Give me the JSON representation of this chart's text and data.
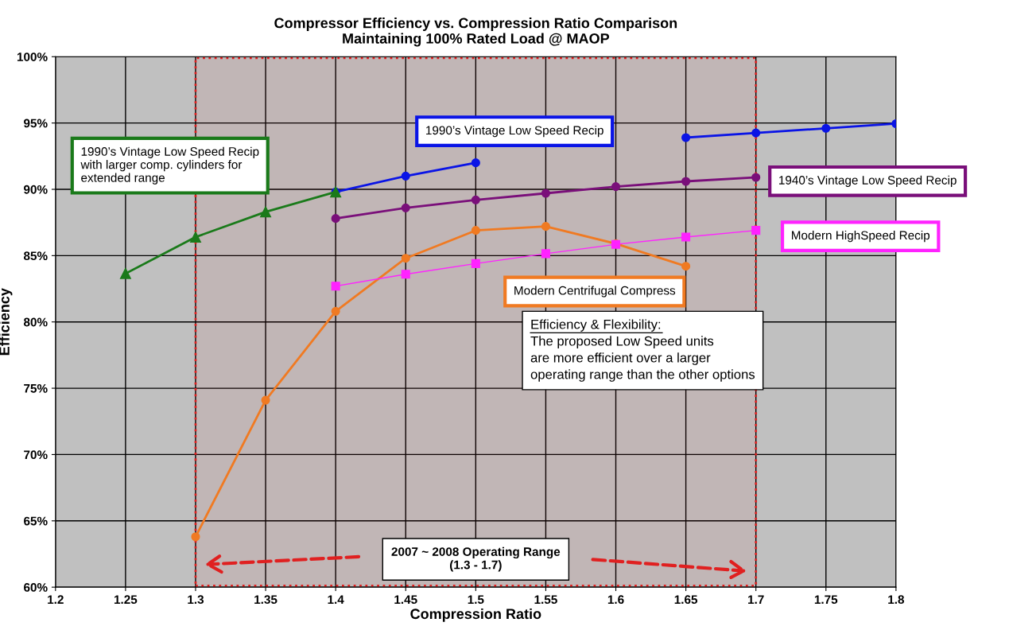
{
  "chart_data": {
    "type": "line",
    "title": "Compressor Efficiency vs. Compression Ratio Comparison\nMaintaining 100% Rated Load @ MAOP",
    "xlabel": "Compression Ratio",
    "ylabel": "Efficiency",
    "x": [
      1.25,
      1.3,
      1.35,
      1.4,
      1.45,
      1.5,
      1.55,
      1.6,
      1.65,
      1.7,
      1.75,
      1.8
    ],
    "series": [
      {
        "name": "1990’s Vintage Low Speed Recip\nwith larger comp. cylinders for\nextended range",
        "color": "#1a7a1a",
        "marker": "triangle",
        "values": [
          83.65,
          86.4,
          88.3,
          89.8,
          null,
          null,
          null,
          null,
          null,
          null,
          null,
          null
        ]
      },
      {
        "name": "1990’s Vintage Low Speed Recip",
        "color": "#0a14e6",
        "marker": "circle",
        "values": [
          null,
          null,
          null,
          89.8,
          91.0,
          92.0,
          null,
          null,
          93.9,
          94.25,
          94.6,
          94.95
        ]
      },
      {
        "name": "1940’s Vintage Low Speed Recip",
        "color": "#7a0f7a",
        "marker": "circle",
        "values": [
          null,
          null,
          null,
          87.8,
          88.6,
          89.2,
          89.7,
          90.2,
          90.6,
          90.9,
          null,
          null
        ]
      },
      {
        "name": "Modern HighSpeed Recip",
        "color": "#ff22ff",
        "marker": "square",
        "values": [
          null,
          null,
          null,
          82.7,
          83.6,
          84.4,
          85.15,
          85.85,
          86.4,
          86.9,
          null,
          null
        ]
      },
      {
        "name": "Modern Centrifugal Compress",
        "color": "#f07a22",
        "marker": "circle",
        "values": [
          null,
          63.8,
          74.1,
          80.8,
          84.8,
          86.9,
          87.2,
          85.9,
          84.2,
          null,
          null,
          null
        ]
      }
    ],
    "xlim": [
      1.2,
      1.8
    ],
    "xticks": [
      1.2,
      1.25,
      1.3,
      1.35,
      1.4,
      1.45,
      1.5,
      1.55,
      1.6,
      1.65,
      1.7,
      1.75,
      1.8
    ],
    "ylim": [
      60,
      100
    ],
    "yticks": [
      {
        "value": 60,
        "label": "60%"
      },
      {
        "value": 65,
        "label": "65%"
      },
      {
        "value": 70,
        "label": "70%"
      },
      {
        "value": 75,
        "label": "75%"
      },
      {
        "value": 80,
        "label": "80%"
      },
      {
        "value": 85,
        "label": "85%"
      },
      {
        "value": 90,
        "label": "90%"
      },
      {
        "value": 95,
        "label": "95%"
      },
      {
        "value": 100,
        "label": "100%"
      }
    ],
    "grid": true,
    "legend": false,
    "bands": [
      {
        "axis": "x",
        "from": 1.3,
        "to": 1.7,
        "label": "2007 ~ 2008 Operating Range\n(1.3 - 1.7)",
        "color": "#e02020"
      }
    ],
    "annotations": [
      "Efficiency & Flexibility:\nThe proposed Low Speed units\nare more efficient over a larger\noperating range than the other options"
    ]
  }
}
